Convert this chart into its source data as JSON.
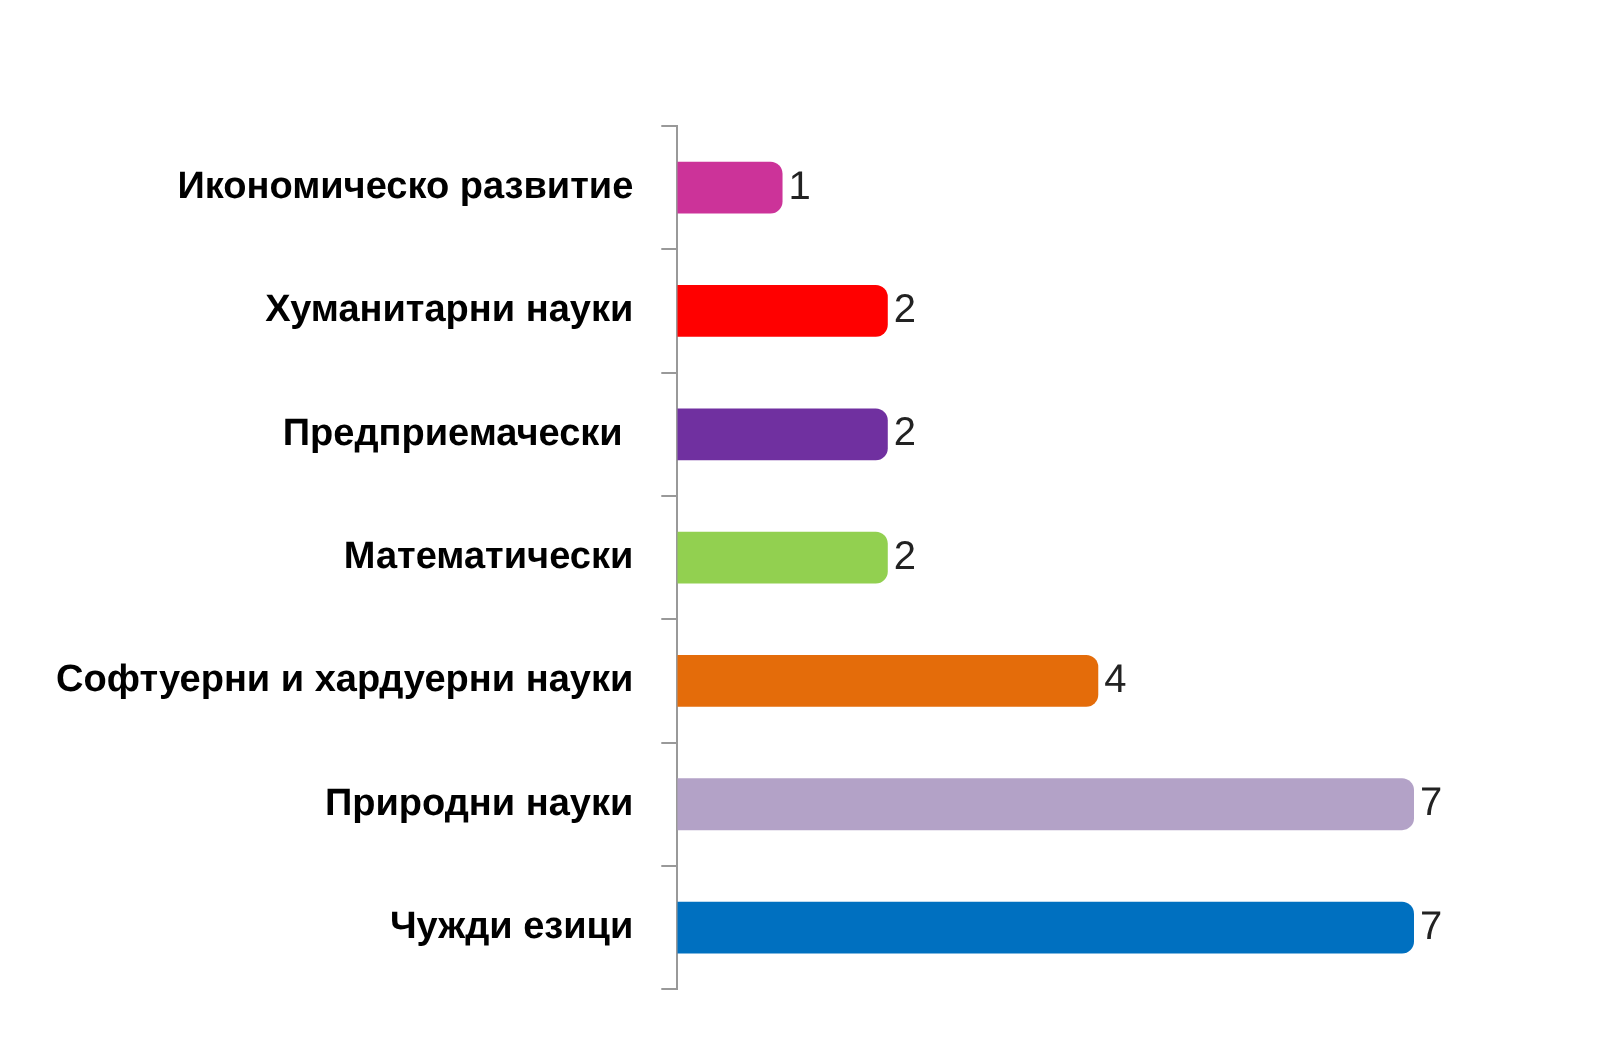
{
  "chart_data": {
    "type": "bar",
    "orientation": "horizontal",
    "data_labels": true,
    "categories": [
      "Икономическо развитие",
      "Хуманитарни науки",
      "Предприемачески ",
      "Математически",
      "Софтуерни и хардуерни науки",
      "Природни науки",
      "Чужди езици"
    ],
    "values": [
      1,
      2,
      2,
      2,
      4,
      7,
      7
    ],
    "colors": [
      "#cc3399",
      "#ff0000",
      "#7030a0",
      "#92d050",
      "#e46c0a",
      "#b3a2c7",
      "#0070c0"
    ]
  }
}
